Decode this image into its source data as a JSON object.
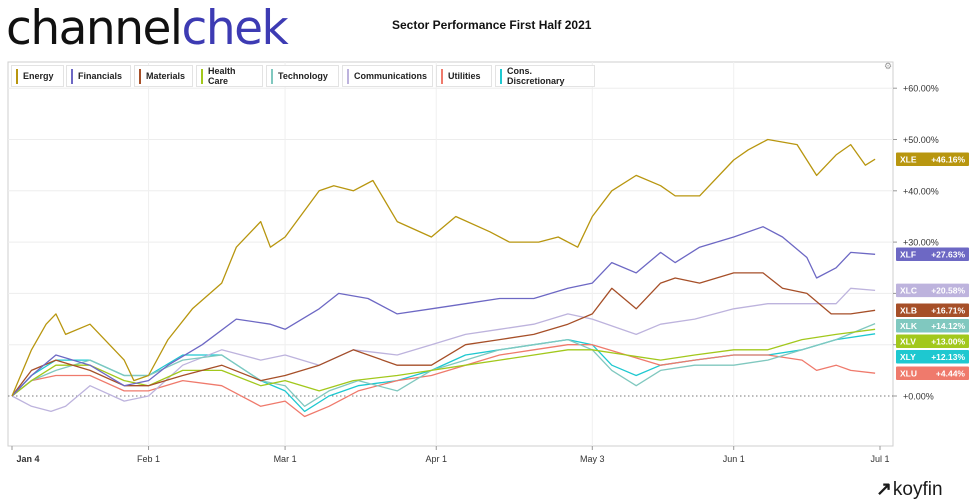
{
  "logo": {
    "part1": "channel",
    "part2": "chek"
  },
  "title": "Sector Performance First Half 2021",
  "brand": {
    "name": "koyfin",
    "mark": "↗"
  },
  "chart_data": {
    "type": "line",
    "title": "Sector Performance First Half 2021",
    "x_start": "2021-01-04",
    "x_end": "2021-06-30",
    "x_ticks": [
      {
        "date": "2021-01-04",
        "label": "Jan 4"
      },
      {
        "date": "2021-02-01",
        "label": "Feb 1"
      },
      {
        "date": "2021-03-01",
        "label": "Mar 1"
      },
      {
        "date": "2021-04-01",
        "label": "Apr 1"
      },
      {
        "date": "2021-05-03",
        "label": "May 3"
      },
      {
        "date": "2021-06-01",
        "label": "Jun 1"
      },
      {
        "date": "2021-07-01",
        "label": "Jul 1"
      }
    ],
    "y_range": [
      -10,
      63
    ],
    "y_ticks": [
      0,
      10,
      20,
      30,
      40,
      50,
      60
    ],
    "y_tick_labels": [
      "+0.00%",
      "+10.00%",
      "+20.00%",
      "+30.00%",
      "+40.00%",
      "+50.00%",
      "+60.00%"
    ],
    "grid": true,
    "legend_position": "top-left",
    "series": [
      {
        "name": "Energy",
        "ticker": "XLE",
        "final_label": "+46.16%",
        "color": "#b8960f",
        "points": [
          [
            "2021-01-04",
            0
          ],
          [
            "2021-01-08",
            9
          ],
          [
            "2021-01-11",
            14
          ],
          [
            "2021-01-13",
            16
          ],
          [
            "2021-01-15",
            12
          ],
          [
            "2021-01-20",
            14
          ],
          [
            "2021-01-27",
            7
          ],
          [
            "2021-01-29",
            3
          ],
          [
            "2021-02-01",
            4
          ],
          [
            "2021-02-05",
            11
          ],
          [
            "2021-02-10",
            17
          ],
          [
            "2021-02-16",
            22
          ],
          [
            "2021-02-19",
            29
          ],
          [
            "2021-02-24",
            34
          ],
          [
            "2021-02-26",
            29
          ],
          [
            "2021-03-01",
            31
          ],
          [
            "2021-03-08",
            40
          ],
          [
            "2021-03-11",
            41
          ],
          [
            "2021-03-15",
            40
          ],
          [
            "2021-03-19",
            42
          ],
          [
            "2021-03-24",
            34
          ],
          [
            "2021-03-31",
            31
          ],
          [
            "2021-04-05",
            35
          ],
          [
            "2021-04-12",
            32
          ],
          [
            "2021-04-16",
            30
          ],
          [
            "2021-04-22",
            30
          ],
          [
            "2021-04-26",
            31
          ],
          [
            "2021-04-30",
            29
          ],
          [
            "2021-05-03",
            35
          ],
          [
            "2021-05-07",
            40
          ],
          [
            "2021-05-12",
            43
          ],
          [
            "2021-05-17",
            41
          ],
          [
            "2021-05-20",
            39
          ],
          [
            "2021-05-25",
            39
          ],
          [
            "2021-06-01",
            46
          ],
          [
            "2021-06-04",
            48
          ],
          [
            "2021-06-08",
            50
          ],
          [
            "2021-06-14",
            49
          ],
          [
            "2021-06-18",
            43
          ],
          [
            "2021-06-22",
            47
          ],
          [
            "2021-06-25",
            49
          ],
          [
            "2021-06-28",
            45
          ],
          [
            "2021-06-30",
            46.16
          ]
        ]
      },
      {
        "name": "Financials",
        "ticker": "XLF",
        "final_label": "+27.63%",
        "color": "#6d68c4",
        "points": [
          [
            "2021-01-04",
            0
          ],
          [
            "2021-01-08",
            4
          ],
          [
            "2021-01-13",
            8
          ],
          [
            "2021-01-20",
            6
          ],
          [
            "2021-01-27",
            2
          ],
          [
            "2021-02-01",
            3
          ],
          [
            "2021-02-05",
            6
          ],
          [
            "2021-02-12",
            10
          ],
          [
            "2021-02-19",
            15
          ],
          [
            "2021-02-26",
            14
          ],
          [
            "2021-03-01",
            13
          ],
          [
            "2021-03-08",
            17
          ],
          [
            "2021-03-12",
            20
          ],
          [
            "2021-03-18",
            19
          ],
          [
            "2021-03-24",
            16
          ],
          [
            "2021-03-31",
            17
          ],
          [
            "2021-04-07",
            18
          ],
          [
            "2021-04-14",
            19
          ],
          [
            "2021-04-21",
            19
          ],
          [
            "2021-04-28",
            21
          ],
          [
            "2021-05-03",
            22
          ],
          [
            "2021-05-07",
            26
          ],
          [
            "2021-05-12",
            24
          ],
          [
            "2021-05-17",
            28
          ],
          [
            "2021-05-20",
            26
          ],
          [
            "2021-05-25",
            29
          ],
          [
            "2021-06-01",
            31
          ],
          [
            "2021-06-07",
            33
          ],
          [
            "2021-06-11",
            31
          ],
          [
            "2021-06-16",
            27
          ],
          [
            "2021-06-18",
            23
          ],
          [
            "2021-06-22",
            25
          ],
          [
            "2021-06-25",
            28
          ],
          [
            "2021-06-30",
            27.63
          ]
        ]
      },
      {
        "name": "Materials",
        "ticker": "XLB",
        "final_label": "+16.71%",
        "color": "#a64f28",
        "points": [
          [
            "2021-01-04",
            0
          ],
          [
            "2021-01-08",
            5
          ],
          [
            "2021-01-13",
            7
          ],
          [
            "2021-01-20",
            5
          ],
          [
            "2021-01-27",
            2
          ],
          [
            "2021-02-01",
            2
          ],
          [
            "2021-02-08",
            4
          ],
          [
            "2021-02-16",
            6
          ],
          [
            "2021-02-24",
            3
          ],
          [
            "2021-03-01",
            4
          ],
          [
            "2021-03-08",
            6
          ],
          [
            "2021-03-15",
            9
          ],
          [
            "2021-03-24",
            6
          ],
          [
            "2021-03-31",
            6
          ],
          [
            "2021-04-07",
            10
          ],
          [
            "2021-04-14",
            11
          ],
          [
            "2021-04-21",
            12
          ],
          [
            "2021-04-28",
            14
          ],
          [
            "2021-05-03",
            16
          ],
          [
            "2021-05-07",
            21
          ],
          [
            "2021-05-12",
            17
          ],
          [
            "2021-05-17",
            22
          ],
          [
            "2021-05-20",
            23
          ],
          [
            "2021-05-25",
            22
          ],
          [
            "2021-06-01",
            24
          ],
          [
            "2021-06-07",
            24
          ],
          [
            "2021-06-11",
            21
          ],
          [
            "2021-06-16",
            20
          ],
          [
            "2021-06-21",
            16
          ],
          [
            "2021-06-25",
            16
          ],
          [
            "2021-06-30",
            16.71
          ]
        ]
      },
      {
        "name": "Health\nCare",
        "ticker": "XLV",
        "final_label": "+13.00%",
        "color": "#a2c81c",
        "points": [
          [
            "2021-01-04",
            0
          ],
          [
            "2021-01-08",
            3
          ],
          [
            "2021-01-13",
            6
          ],
          [
            "2021-01-20",
            6
          ],
          [
            "2021-01-27",
            3
          ],
          [
            "2021-02-01",
            2
          ],
          [
            "2021-02-08",
            5
          ],
          [
            "2021-02-16",
            5
          ],
          [
            "2021-02-24",
            2
          ],
          [
            "2021-03-01",
            3
          ],
          [
            "2021-03-08",
            1
          ],
          [
            "2021-03-15",
            3
          ],
          [
            "2021-03-24",
            4
          ],
          [
            "2021-03-31",
            5
          ],
          [
            "2021-04-07",
            6
          ],
          [
            "2021-04-14",
            7
          ],
          [
            "2021-04-21",
            8
          ],
          [
            "2021-04-28",
            9
          ],
          [
            "2021-05-03",
            9
          ],
          [
            "2021-05-10",
            8
          ],
          [
            "2021-05-17",
            7
          ],
          [
            "2021-05-24",
            8
          ],
          [
            "2021-06-01",
            9
          ],
          [
            "2021-06-08",
            9
          ],
          [
            "2021-06-15",
            11
          ],
          [
            "2021-06-22",
            12
          ],
          [
            "2021-06-30",
            13
          ]
        ]
      },
      {
        "name": "Technology",
        "ticker": "XLK",
        "final_label": "+14.12%",
        "color": "#80c8bf",
        "points": [
          [
            "2021-01-04",
            0
          ],
          [
            "2021-01-08",
            3
          ],
          [
            "2021-01-13",
            5
          ],
          [
            "2021-01-20",
            7
          ],
          [
            "2021-01-27",
            4
          ],
          [
            "2021-02-01",
            4
          ],
          [
            "2021-02-08",
            7
          ],
          [
            "2021-02-16",
            8
          ],
          [
            "2021-02-24",
            3
          ],
          [
            "2021-03-01",
            2
          ],
          [
            "2021-03-05",
            -2
          ],
          [
            "2021-03-10",
            1
          ],
          [
            "2021-03-16",
            3
          ],
          [
            "2021-03-24",
            1
          ],
          [
            "2021-03-31",
            5
          ],
          [
            "2021-04-07",
            7
          ],
          [
            "2021-04-14",
            9
          ],
          [
            "2021-04-21",
            10
          ],
          [
            "2021-04-28",
            11
          ],
          [
            "2021-05-03",
            9
          ],
          [
            "2021-05-07",
            5
          ],
          [
            "2021-05-12",
            2
          ],
          [
            "2021-05-17",
            5
          ],
          [
            "2021-05-24",
            6
          ],
          [
            "2021-06-01",
            6
          ],
          [
            "2021-06-08",
            7
          ],
          [
            "2021-06-15",
            9
          ],
          [
            "2021-06-22",
            11
          ],
          [
            "2021-06-30",
            14.12
          ]
        ]
      },
      {
        "name": "Communications",
        "ticker": "XLC",
        "final_label": "+20.58%",
        "color": "#bdb3dd",
        "points": [
          [
            "2021-01-04",
            0
          ],
          [
            "2021-01-08",
            -2
          ],
          [
            "2021-01-12",
            -3
          ],
          [
            "2021-01-15",
            -2
          ],
          [
            "2021-01-20",
            2
          ],
          [
            "2021-01-27",
            -1
          ],
          [
            "2021-02-01",
            0
          ],
          [
            "2021-02-08",
            6
          ],
          [
            "2021-02-16",
            9
          ],
          [
            "2021-02-24",
            7
          ],
          [
            "2021-03-01",
            8
          ],
          [
            "2021-03-08",
            6
          ],
          [
            "2021-03-15",
            9
          ],
          [
            "2021-03-24",
            8
          ],
          [
            "2021-03-31",
            10
          ],
          [
            "2021-04-07",
            12
          ],
          [
            "2021-04-14",
            13
          ],
          [
            "2021-04-21",
            14
          ],
          [
            "2021-04-28",
            16
          ],
          [
            "2021-05-03",
            15
          ],
          [
            "2021-05-12",
            12
          ],
          [
            "2021-05-17",
            14
          ],
          [
            "2021-05-24",
            15
          ],
          [
            "2021-06-01",
            17
          ],
          [
            "2021-06-08",
            18
          ],
          [
            "2021-06-15",
            18
          ],
          [
            "2021-06-22",
            18
          ],
          [
            "2021-06-25",
            21
          ],
          [
            "2021-06-30",
            20.58
          ]
        ]
      },
      {
        "name": "Utilities",
        "ticker": "XLU",
        "final_label": "+4.44%",
        "color": "#ef7a6c",
        "points": [
          [
            "2021-01-04",
            0
          ],
          [
            "2021-01-08",
            3
          ],
          [
            "2021-01-13",
            4
          ],
          [
            "2021-01-20",
            4
          ],
          [
            "2021-01-27",
            1
          ],
          [
            "2021-02-01",
            1
          ],
          [
            "2021-02-08",
            3
          ],
          [
            "2021-02-16",
            2
          ],
          [
            "2021-02-24",
            -2
          ],
          [
            "2021-03-01",
            -1
          ],
          [
            "2021-03-05",
            -4
          ],
          [
            "2021-03-10",
            -2
          ],
          [
            "2021-03-16",
            1
          ],
          [
            "2021-03-24",
            3
          ],
          [
            "2021-03-31",
            4
          ],
          [
            "2021-04-07",
            6
          ],
          [
            "2021-04-14",
            8
          ],
          [
            "2021-04-21",
            9
          ],
          [
            "2021-04-28",
            10
          ],
          [
            "2021-05-03",
            10
          ],
          [
            "2021-05-10",
            8
          ],
          [
            "2021-05-17",
            6
          ],
          [
            "2021-05-24",
            7
          ],
          [
            "2021-06-01",
            8
          ],
          [
            "2021-06-08",
            8
          ],
          [
            "2021-06-15",
            7
          ],
          [
            "2021-06-18",
            5
          ],
          [
            "2021-06-22",
            6
          ],
          [
            "2021-06-25",
            5
          ],
          [
            "2021-06-30",
            4.44
          ]
        ]
      },
      {
        "name": "Cons.\nDiscretionary",
        "ticker": "XLY",
        "final_label": "+12.13%",
        "color": "#1ec8d0",
        "points": [
          [
            "2021-01-04",
            0
          ],
          [
            "2021-01-08",
            4
          ],
          [
            "2021-01-13",
            7
          ],
          [
            "2021-01-20",
            7
          ],
          [
            "2021-01-27",
            4
          ],
          [
            "2021-02-01",
            4
          ],
          [
            "2021-02-08",
            8
          ],
          [
            "2021-02-16",
            8
          ],
          [
            "2021-02-24",
            3
          ],
          [
            "2021-03-01",
            1
          ],
          [
            "2021-03-05",
            -3
          ],
          [
            "2021-03-10",
            0
          ],
          [
            "2021-03-16",
            2
          ],
          [
            "2021-03-24",
            3
          ],
          [
            "2021-03-31",
            5
          ],
          [
            "2021-04-07",
            8
          ],
          [
            "2021-04-14",
            9
          ],
          [
            "2021-04-21",
            10
          ],
          [
            "2021-04-28",
            11
          ],
          [
            "2021-05-03",
            10
          ],
          [
            "2021-05-07",
            6
          ],
          [
            "2021-05-12",
            4
          ],
          [
            "2021-05-17",
            6
          ],
          [
            "2021-05-24",
            7
          ],
          [
            "2021-06-01",
            8
          ],
          [
            "2021-06-08",
            8
          ],
          [
            "2021-06-15",
            9
          ],
          [
            "2021-06-22",
            11
          ],
          [
            "2021-06-30",
            12.13
          ]
        ]
      }
    ]
  }
}
